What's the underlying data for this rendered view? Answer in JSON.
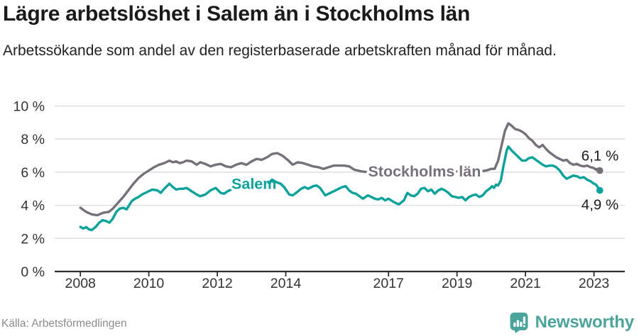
{
  "header": {
    "title": "Lägre arbetslöshet i Salem än i Stockholms län",
    "subtitle": "Arbetssökande som andel av den registerbaserade arbetskraften månad för månad."
  },
  "footer": {
    "source": "Källa: Arbetsförmedlingen",
    "brand": "Newsworthy"
  },
  "colors": {
    "stockholm_line": "#757079",
    "salem_line": "#0aa29a",
    "grid": "#dadada",
    "axis": "#2f2f2f",
    "tick_text": "#333333",
    "title_text": "#1a1a1a",
    "annotation_text": "#1a1a1a",
    "source_text": "#8c8c8c",
    "brand_teal": "#4ba49b"
  },
  "chart_data": {
    "type": "line",
    "title": "Lägre arbetslöshet i Salem än i Stockholms län",
    "subtitle": "Arbetssökande som andel av den registerbaserade arbetskraften månad för månad.",
    "xlabel": "",
    "ylabel": "",
    "unit": "%",
    "grid": "horizontal",
    "legend": "inline-labels",
    "xlim": [
      2007.25,
      2023.9
    ],
    "ylim": [
      0,
      10
    ],
    "x_tick_values": [
      2008,
      2010,
      2012,
      2014,
      2017,
      2019,
      2021,
      2023
    ],
    "x_tick_labels": [
      "2008",
      "2010",
      "2012",
      "2014",
      "2017",
      "2019",
      "2021",
      "2023"
    ],
    "y_tick_values": [
      0,
      2,
      4,
      6,
      8,
      10
    ],
    "y_tick_labels": [
      "0 %",
      "2 %",
      "4 %",
      "6 %",
      "8 %",
      "10 %"
    ],
    "series": [
      {
        "name": "Stockholms län",
        "color": "#757079",
        "end_label": "6,1 %",
        "end_label_side": "above",
        "end_value": 6.1,
        "label_anchor": {
          "t": 2018.05,
          "v": 6.05
        },
        "points": [
          [
            2008,
            3.85
          ],
          [
            2008.17,
            3.6
          ],
          [
            2008.33,
            3.45
          ],
          [
            2008.5,
            3.4
          ],
          [
            2008.67,
            3.55
          ],
          [
            2008.83,
            3.6
          ],
          [
            2008.95,
            3.8
          ],
          [
            2009.1,
            4.15
          ],
          [
            2009.25,
            4.5
          ],
          [
            2009.4,
            4.9
          ],
          [
            2009.55,
            5.3
          ],
          [
            2009.7,
            5.65
          ],
          [
            2009.85,
            5.9
          ],
          [
            2010,
            6.1
          ],
          [
            2010.15,
            6.3
          ],
          [
            2010.3,
            6.45
          ],
          [
            2010.45,
            6.55
          ],
          [
            2010.6,
            6.7
          ],
          [
            2010.7,
            6.6
          ],
          [
            2010.8,
            6.65
          ],
          [
            2010.9,
            6.55
          ],
          [
            2011,
            6.6
          ],
          [
            2011.1,
            6.7
          ],
          [
            2011.25,
            6.65
          ],
          [
            2011.4,
            6.45
          ],
          [
            2011.5,
            6.6
          ],
          [
            2011.65,
            6.5
          ],
          [
            2011.8,
            6.35
          ],
          [
            2011.95,
            6.45
          ],
          [
            2012.1,
            6.5
          ],
          [
            2012.25,
            6.35
          ],
          [
            2012.4,
            6.3
          ],
          [
            2012.55,
            6.45
          ],
          [
            2012.7,
            6.55
          ],
          [
            2012.85,
            6.45
          ],
          [
            2013,
            6.65
          ],
          [
            2013.15,
            6.8
          ],
          [
            2013.3,
            6.75
          ],
          [
            2013.45,
            6.9
          ],
          [
            2013.6,
            7.1
          ],
          [
            2013.75,
            7.15
          ],
          [
            2013.9,
            7
          ],
          [
            2014.05,
            6.75
          ],
          [
            2014.2,
            6.45
          ],
          [
            2014.35,
            6.6
          ],
          [
            2014.5,
            6.55
          ],
          [
            2014.65,
            6.45
          ],
          [
            2014.8,
            6.35
          ],
          [
            2014.95,
            6.3
          ],
          [
            2015.1,
            6.2
          ],
          [
            2015.25,
            6.3
          ],
          [
            2015.4,
            6.4
          ],
          [
            2015.55,
            6.4
          ],
          [
            2015.7,
            6.4
          ],
          [
            2015.85,
            6.35
          ],
          [
            2016,
            6.15
          ],
          [
            2016.2,
            6.05
          ],
          [
            2016.4,
            6
          ],
          [
            2016.7,
            5.95
          ],
          [
            2017,
            5.9
          ],
          [
            2017.3,
            5.85
          ],
          [
            2017.6,
            5.9
          ],
          [
            2017.9,
            5.95
          ],
          [
            2018.2,
            6
          ],
          [
            2018.5,
            6
          ],
          [
            2018.8,
            6.05
          ],
          [
            2019.1,
            6.05
          ],
          [
            2019.4,
            6.05
          ],
          [
            2019.7,
            6.05
          ],
          [
            2019.85,
            6.1
          ],
          [
            2020,
            6.2
          ],
          [
            2020.1,
            6.2
          ],
          [
            2020.2,
            6.7
          ],
          [
            2020.3,
            7.6
          ],
          [
            2020.4,
            8.5
          ],
          [
            2020.5,
            8.95
          ],
          [
            2020.6,
            8.8
          ],
          [
            2020.7,
            8.6
          ],
          [
            2020.8,
            8.55
          ],
          [
            2020.9,
            8.45
          ],
          [
            2021,
            8.3
          ],
          [
            2021.1,
            8.05
          ],
          [
            2021.2,
            7.9
          ],
          [
            2021.3,
            7.65
          ],
          [
            2021.4,
            7.5
          ],
          [
            2021.5,
            7.65
          ],
          [
            2021.6,
            7.4
          ],
          [
            2021.7,
            7.2
          ],
          [
            2021.8,
            7.05
          ],
          [
            2021.9,
            6.9
          ],
          [
            2022,
            6.8
          ],
          [
            2022.1,
            6.7
          ],
          [
            2022.2,
            6.75
          ],
          [
            2022.3,
            6.55
          ],
          [
            2022.4,
            6.45
          ],
          [
            2022.5,
            6.5
          ],
          [
            2022.6,
            6.4
          ],
          [
            2022.7,
            6.35
          ],
          [
            2022.8,
            6.4
          ],
          [
            2022.9,
            6.3
          ],
          [
            2023,
            6.25
          ],
          [
            2023.05,
            6.15
          ],
          [
            2023.1,
            6.2
          ],
          [
            2023.17,
            6.1
          ]
        ]
      },
      {
        "name": "Salem",
        "color": "#0aa29a",
        "end_label": "4,9 %",
        "end_label_side": "below",
        "end_value": 4.9,
        "label_anchor": {
          "t": 2013.07,
          "v": 5.3
        },
        "overlay_range": [
          2013.4,
          2014.0
        ],
        "points": [
          [
            2008,
            2.7
          ],
          [
            2008.08,
            2.6
          ],
          [
            2008.17,
            2.68
          ],
          [
            2008.25,
            2.55
          ],
          [
            2008.33,
            2.5
          ],
          [
            2008.45,
            2.7
          ],
          [
            2008.55,
            2.95
          ],
          [
            2008.65,
            3.1
          ],
          [
            2008.75,
            3.05
          ],
          [
            2008.85,
            2.95
          ],
          [
            2008.95,
            3.2
          ],
          [
            2009.05,
            3.6
          ],
          [
            2009.15,
            3.8
          ],
          [
            2009.25,
            3.85
          ],
          [
            2009.35,
            3.75
          ],
          [
            2009.5,
            4.25
          ],
          [
            2009.6,
            4.4
          ],
          [
            2009.7,
            4.5
          ],
          [
            2009.8,
            4.65
          ],
          [
            2009.95,
            4.8
          ],
          [
            2010.1,
            4.95
          ],
          [
            2010.25,
            4.9
          ],
          [
            2010.35,
            4.75
          ],
          [
            2010.45,
            5
          ],
          [
            2010.6,
            5.3
          ],
          [
            2010.7,
            5.1
          ],
          [
            2010.8,
            4.95
          ],
          [
            2010.9,
            5
          ],
          [
            2011,
            5
          ],
          [
            2011.1,
            5.05
          ],
          [
            2011.25,
            4.85
          ],
          [
            2011.4,
            4.65
          ],
          [
            2011.5,
            4.55
          ],
          [
            2011.65,
            4.65
          ],
          [
            2011.8,
            4.9
          ],
          [
            2011.95,
            5.05
          ],
          [
            2012.1,
            4.75
          ],
          [
            2012.2,
            4.7
          ],
          [
            2012.3,
            4.85
          ],
          [
            2012.45,
            5
          ],
          [
            2012.6,
            5.05
          ],
          [
            2012.75,
            5.1
          ],
          [
            2012.9,
            5.15
          ],
          [
            2013.05,
            5.2
          ],
          [
            2013.2,
            5.15
          ],
          [
            2013.35,
            5.25
          ],
          [
            2013.5,
            5.35
          ],
          [
            2013.6,
            5.55
          ],
          [
            2013.72,
            5.4
          ],
          [
            2013.85,
            5.3
          ],
          [
            2013.95,
            5.1
          ],
          [
            2014.1,
            4.65
          ],
          [
            2014.2,
            4.6
          ],
          [
            2014.3,
            4.75
          ],
          [
            2014.45,
            5
          ],
          [
            2014.55,
            5.1
          ],
          [
            2014.65,
            5
          ],
          [
            2014.8,
            5.15
          ],
          [
            2014.9,
            5.2
          ],
          [
            2015,
            5.05
          ],
          [
            2015.15,
            4.6
          ],
          [
            2015.25,
            4.7
          ],
          [
            2015.4,
            4.85
          ],
          [
            2015.5,
            4.95
          ],
          [
            2015.65,
            5.1
          ],
          [
            2015.75,
            5.15
          ],
          [
            2015.85,
            4.9
          ],
          [
            2015.95,
            4.75
          ],
          [
            2016.05,
            4.7
          ],
          [
            2016.15,
            4.55
          ],
          [
            2016.25,
            4.4
          ],
          [
            2016.4,
            4.6
          ],
          [
            2016.5,
            4.5
          ],
          [
            2016.6,
            4.4
          ],
          [
            2016.7,
            4.35
          ],
          [
            2016.8,
            4.45
          ],
          [
            2016.9,
            4.3
          ],
          [
            2017,
            4.4
          ],
          [
            2017.15,
            4.2
          ],
          [
            2017.3,
            4.05
          ],
          [
            2017.45,
            4.3
          ],
          [
            2017.55,
            4.75
          ],
          [
            2017.65,
            4.6
          ],
          [
            2017.75,
            4.55
          ],
          [
            2017.85,
            4.7
          ],
          [
            2017.95,
            5
          ],
          [
            2018.05,
            5.05
          ],
          [
            2018.15,
            4.85
          ],
          [
            2018.25,
            4.95
          ],
          [
            2018.35,
            4.7
          ],
          [
            2018.45,
            4.9
          ],
          [
            2018.55,
            5
          ],
          [
            2018.65,
            4.9
          ],
          [
            2018.75,
            4.75
          ],
          [
            2018.85,
            4.55
          ],
          [
            2018.95,
            4.5
          ],
          [
            2019.05,
            4.45
          ],
          [
            2019.15,
            4.5
          ],
          [
            2019.25,
            4.3
          ],
          [
            2019.35,
            4.5
          ],
          [
            2019.45,
            4.6
          ],
          [
            2019.55,
            4.65
          ],
          [
            2019.65,
            4.5
          ],
          [
            2019.75,
            4.6
          ],
          [
            2019.85,
            4.85
          ],
          [
            2019.95,
            5
          ],
          [
            2020.02,
            5.15
          ],
          [
            2020.08,
            5.05
          ],
          [
            2020.14,
            5.25
          ],
          [
            2020.2,
            5.2
          ],
          [
            2020.28,
            5.5
          ],
          [
            2020.35,
            6.3
          ],
          [
            2020.45,
            7.3
          ],
          [
            2020.5,
            7.55
          ],
          [
            2020.6,
            7.3
          ],
          [
            2020.7,
            7.1
          ],
          [
            2020.8,
            6.9
          ],
          [
            2020.9,
            6.7
          ],
          [
            2021,
            6.7
          ],
          [
            2021.1,
            6.85
          ],
          [
            2021.2,
            6.9
          ],
          [
            2021.3,
            6.75
          ],
          [
            2021.4,
            6.6
          ],
          [
            2021.5,
            6.45
          ],
          [
            2021.6,
            6.35
          ],
          [
            2021.7,
            6.4
          ],
          [
            2021.8,
            6.4
          ],
          [
            2021.9,
            6.3
          ],
          [
            2022,
            6.1
          ],
          [
            2022.1,
            5.8
          ],
          [
            2022.2,
            5.6
          ],
          [
            2022.3,
            5.7
          ],
          [
            2022.4,
            5.8
          ],
          [
            2022.5,
            5.75
          ],
          [
            2022.6,
            5.65
          ],
          [
            2022.7,
            5.7
          ],
          [
            2022.8,
            5.55
          ],
          [
            2022.9,
            5.45
          ],
          [
            2023,
            5.3
          ],
          [
            2023.06,
            5.25
          ],
          [
            2023.11,
            5.1
          ],
          [
            2023.17,
            4.9
          ]
        ]
      }
    ]
  }
}
